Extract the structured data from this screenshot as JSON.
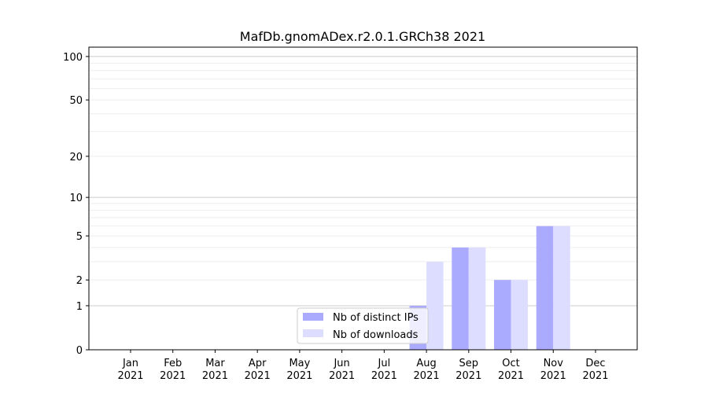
{
  "chart_data": {
    "type": "bar",
    "title": "MafDb.gnomADex.r2.0.1.GRCh38 2021",
    "xlabel": "",
    "ylabel": "",
    "yscale": "log10(1+y)",
    "ylim": [
      0,
      116
    ],
    "yticks": [
      0,
      1,
      2,
      5,
      10,
      20,
      50,
      100
    ],
    "grid": true,
    "legend_position": "lower-center",
    "categories": [
      "Jan\n2021",
      "Feb\n2021",
      "Mar\n2021",
      "Apr\n2021",
      "May\n2021",
      "Jun\n2021",
      "Jul\n2021",
      "Aug\n2021",
      "Sep\n2021",
      "Oct\n2021",
      "Nov\n2021",
      "Dec\n2021"
    ],
    "series": [
      {
        "name": "Nb of distinct IPs",
        "color": "#aaaaff",
        "values": [
          0,
          0,
          0,
          0,
          0,
          0,
          0,
          1,
          4,
          2,
          6,
          0
        ]
      },
      {
        "name": "Nb of downloads",
        "color": "#ddddff",
        "values": [
          0,
          0,
          0,
          0,
          0,
          0,
          0,
          3,
          4,
          2,
          6,
          0
        ]
      }
    ]
  }
}
